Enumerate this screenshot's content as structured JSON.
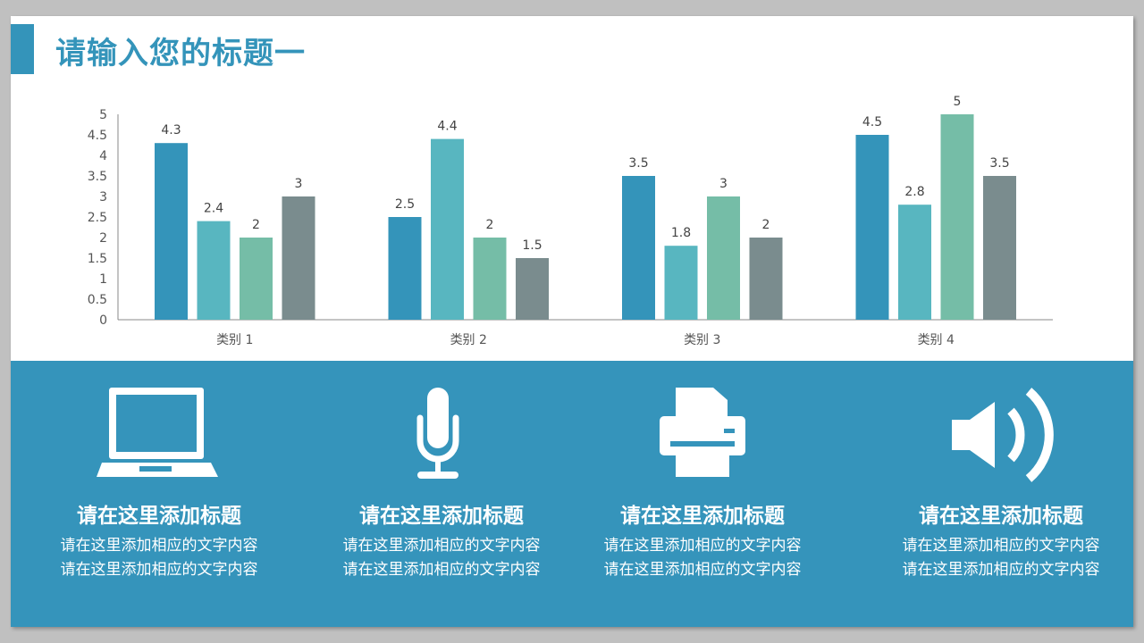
{
  "title": "请输入您的标题一",
  "chart_data": {
    "type": "bar",
    "categories": [
      "类别 1",
      "类别 2",
      "类别 3",
      "类别 4"
    ],
    "series": [
      {
        "values": [
          4.3,
          2.5,
          3.5,
          4.5
        ],
        "color": "#3494ba"
      },
      {
        "values": [
          2.4,
          4.4,
          1.8,
          2.8
        ],
        "color": "#58b6c0"
      },
      {
        "values": [
          2,
          2,
          3,
          5
        ],
        "color": "#75bda7"
      },
      {
        "values": [
          3,
          1.5,
          2,
          3.5
        ],
        "color": "#7a8c8e"
      }
    ],
    "ylim": [
      0,
      5
    ],
    "yticks": [
      "0",
      "0.5",
      "1",
      "1.5",
      "2",
      "2.5",
      "3",
      "3.5",
      "4",
      "4.5",
      "5"
    ],
    "grid": false,
    "data_labels": true
  },
  "features": [
    {
      "icon": "laptop-icon",
      "heading": "请在这里添加标题",
      "desc": "请在这里添加相应的文字内容请在这里添加相应的文字内容"
    },
    {
      "icon": "microphone-icon",
      "heading": "请在这里添加标题",
      "desc": "请在这里添加相应的文字内容请在这里添加相应的文字内容"
    },
    {
      "icon": "printer-icon",
      "heading": "请在这里添加标题",
      "desc": "请在这里添加相应的文字内容请在这里添加相应的文字内容"
    },
    {
      "icon": "speaker-icon",
      "heading": "请在这里添加标题",
      "desc": "请在这里添加相应的文字内容请在这里添加相应的文字内容"
    }
  ],
  "colors": {
    "accent": "#3494ba",
    "band": "#3594bb"
  }
}
